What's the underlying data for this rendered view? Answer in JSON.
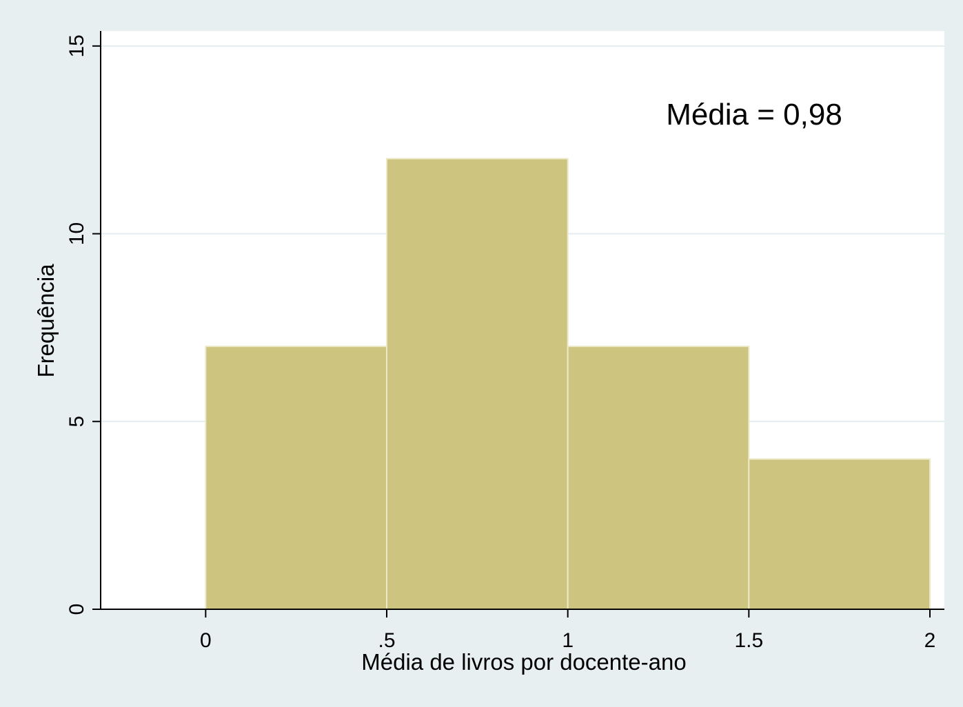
{
  "chart_data": {
    "type": "bar",
    "subtype": "histogram",
    "bins": [
      {
        "start": 0,
        "end": 0.5,
        "value": 7
      },
      {
        "start": 0.5,
        "end": 1,
        "value": 12
      },
      {
        "start": 1,
        "end": 1.5,
        "value": 7
      },
      {
        "start": 1.5,
        "end": 2,
        "value": 4
      }
    ],
    "xlabel": "Média de livros por docente-ano",
    "ylabel": "Frequência",
    "x_ticks": [
      {
        "value": 0,
        "label": "0"
      },
      {
        "value": 0.5,
        "label": ".5"
      },
      {
        "value": 1,
        "label": "1"
      },
      {
        "value": 1.5,
        "label": "1.5"
      },
      {
        "value": 2,
        "label": "2"
      }
    ],
    "y_ticks": [
      {
        "value": 0,
        "label": "0"
      },
      {
        "value": 5,
        "label": "5"
      },
      {
        "value": 10,
        "label": "10"
      },
      {
        "value": 15,
        "label": "15"
      }
    ],
    "xlim": [
      -0.29,
      2.04
    ],
    "ylim": [
      0,
      15.4
    ],
    "grid": "horizontal",
    "annotation": "Média = 0,98",
    "colors": {
      "bar_fill": "#ccc47f",
      "bar_edge": "#ede9c8",
      "plot_background": "#ffffff",
      "page_background": "#e8eff1",
      "grid": "#e4edf0"
    }
  }
}
